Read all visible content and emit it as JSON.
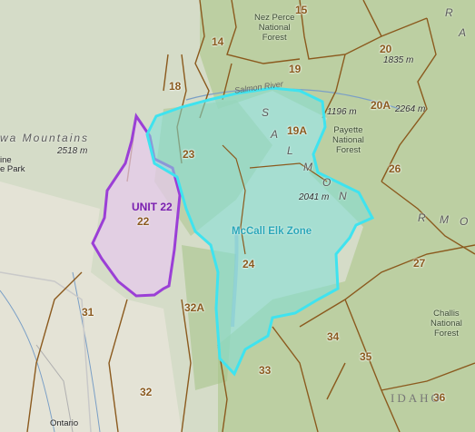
{
  "colors": {
    "unit_boundary": "#8b5a1e",
    "mccall_zone_stroke": "#3fe3ef",
    "mccall_zone_fill": "#7fe0d8",
    "unit22_stroke": "#9b3fd6",
    "unit22_fill": "#e7c9ee",
    "forest_green": "#a9c48c"
  },
  "unit_labels": [
    "15",
    "14",
    "20",
    "19",
    "18",
    "20A",
    "19A",
    "23",
    "26",
    "UNIT 22",
    "22",
    "24",
    "27",
    "31",
    "32A",
    "34",
    "33",
    "35",
    "32",
    "36"
  ],
  "elevations": [
    "2518 m",
    "1835 m",
    "1196 m",
    "2264 m",
    "2041 m"
  ],
  "forests": {
    "nez_perce": [
      "Nez Perce",
      "National",
      "Forest"
    ],
    "payette": [
      "Payette",
      "National",
      "Forest"
    ],
    "challis": [
      "Challis",
      "National",
      "Forest"
    ]
  },
  "places": {
    "mountains": "wa Mountains",
    "park": "ine",
    "park2": "e Park",
    "ontario": "Ontario",
    "state": "IDAHO",
    "salmon_river": "Salmon River",
    "salmon_letters": [
      "S",
      "A",
      "L",
      "M",
      "O",
      "N"
    ],
    "r_letters": [
      "R",
      "A"
    ],
    "r_m": [
      "R",
      "M",
      "O"
    ]
  },
  "zone_label": "McCall Elk Zone"
}
